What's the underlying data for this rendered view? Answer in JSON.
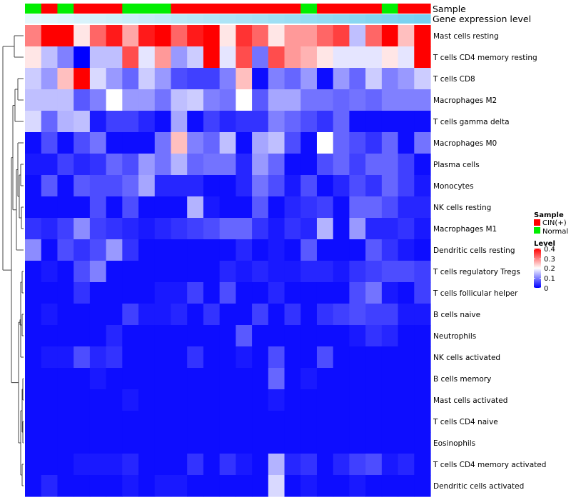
{
  "chart_data": {
    "type": "heatmap",
    "title": "",
    "annotation_tracks": [
      {
        "name": "Sample",
        "values": [
          "Normal",
          "CIN(+)",
          "Normal",
          "CIN(+)",
          "CIN(+)",
          "CIN(+)",
          "Normal",
          "Normal",
          "Normal",
          "CIN(+)",
          "CIN(+)",
          "CIN(+)",
          "CIN(+)",
          "CIN(+)",
          "CIN(+)",
          "CIN(+)",
          "CIN(+)",
          "Normal",
          "CIN(+)",
          "CIN(+)",
          "CIN(+)",
          "CIN(+)",
          "Normal",
          "CIN(+)",
          "CIN(+)"
        ]
      },
      {
        "name": "Gene expression level",
        "values": [
          0.0,
          0.04,
          0.08,
          0.12,
          0.17,
          0.21,
          0.25,
          0.29,
          0.33,
          0.38,
          0.42,
          0.46,
          0.5,
          0.54,
          0.58,
          0.63,
          0.67,
          0.71,
          0.75,
          0.79,
          0.83,
          0.88,
          0.92,
          0.96,
          1.0
        ]
      }
    ],
    "rows": [
      "Mast cells resting",
      "T cells CD4 memory resting",
      "T cells CD8",
      "Macrophages M2",
      "T cells gamma delta",
      "Macrophages M0",
      "Plasma cells",
      "Monocytes",
      "NK cells resting",
      "Macrophages M1",
      "Dendritic cells resting",
      "T cells regulatory  Tregs",
      "T cells follicular helper",
      "B cells naive",
      "Neutrophils",
      "NK cells activated",
      "B cells memory",
      "Mast cells activated",
      "T cells CD4 naive",
      "Eosinophils",
      "T cells CD4 memory activated",
      "Dendritic cells activated"
    ],
    "n_columns": 25,
    "values": [
      [
        0.3,
        0.4,
        0.4,
        0.22,
        0.32,
        0.38,
        0.27,
        0.38,
        0.4,
        0.32,
        0.38,
        0.4,
        0.22,
        0.36,
        0.32,
        0.22,
        0.28,
        0.28,
        0.32,
        0.35,
        0.15,
        0.32,
        0.4,
        0.25,
        0.4
      ],
      [
        0.22,
        0.15,
        0.1,
        0.0,
        0.15,
        0.15,
        0.34,
        0.18,
        0.28,
        0.12,
        0.16,
        0.4,
        0.18,
        0.34,
        0.09,
        0.34,
        0.28,
        0.26,
        0.22,
        0.18,
        0.18,
        0.18,
        0.22,
        0.18,
        0.4
      ],
      [
        0.16,
        0.12,
        0.25,
        0.4,
        0.17,
        0.12,
        0.08,
        0.16,
        0.12,
        0.06,
        0.05,
        0.05,
        0.1,
        0.25,
        0.01,
        0.1,
        0.08,
        0.12,
        0.01,
        0.12,
        0.08,
        0.16,
        0.1,
        0.12,
        0.16
      ],
      [
        0.15,
        0.15,
        0.15,
        0.07,
        0.1,
        0.2,
        0.12,
        0.12,
        0.09,
        0.15,
        0.16,
        0.1,
        0.09,
        0.2,
        0.07,
        0.13,
        0.13,
        0.09,
        0.09,
        0.08,
        0.09,
        0.08,
        0.1,
        0.1,
        0.1
      ],
      [
        0.17,
        0.08,
        0.14,
        0.15,
        0.02,
        0.05,
        0.05,
        0.03,
        0.01,
        0.13,
        0.01,
        0.05,
        0.03,
        0.04,
        0.04,
        0.1,
        0.08,
        0.06,
        0.04,
        0.08,
        0.01,
        0.01,
        0.01,
        0.01,
        0.01
      ],
      [
        0.01,
        0.06,
        0.01,
        0.06,
        0.09,
        0.01,
        0.01,
        0.01,
        0.09,
        0.25,
        0.1,
        0.08,
        0.15,
        0.01,
        0.13,
        0.15,
        0.06,
        0.01,
        0.2,
        0.08,
        0.06,
        0.04,
        0.08,
        0.01,
        0.09
      ],
      [
        0.02,
        0.02,
        0.05,
        0.03,
        0.04,
        0.08,
        0.06,
        0.12,
        0.09,
        0.14,
        0.08,
        0.09,
        0.09,
        0.03,
        0.12,
        0.08,
        0.01,
        0.01,
        0.06,
        0.08,
        0.05,
        0.08,
        0.08,
        0.05,
        0.01
      ],
      [
        0.01,
        0.07,
        0.01,
        0.07,
        0.06,
        0.06,
        0.08,
        0.13,
        0.03,
        0.03,
        0.03,
        0.01,
        0.01,
        0.03,
        0.09,
        0.06,
        0.02,
        0.06,
        0.01,
        0.03,
        0.06,
        0.04,
        0.08,
        0.05,
        0.02
      ],
      [
        0.01,
        0.01,
        0.01,
        0.01,
        0.06,
        0.01,
        0.06,
        0.01,
        0.01,
        0.01,
        0.14,
        0.02,
        0.01,
        0.01,
        0.07,
        0.01,
        0.03,
        0.04,
        0.05,
        0.01,
        0.08,
        0.08,
        0.06,
        0.03,
        0.03
      ],
      [
        0.04,
        0.03,
        0.05,
        0.11,
        0.05,
        0.04,
        0.03,
        0.02,
        0.03,
        0.04,
        0.05,
        0.06,
        0.08,
        0.08,
        0.04,
        0.02,
        0.04,
        0.03,
        0.14,
        0.01,
        0.12,
        0.03,
        0.03,
        0.04,
        0.02
      ],
      [
        0.11,
        0.01,
        0.06,
        0.04,
        0.06,
        0.12,
        0.04,
        0.01,
        0.01,
        0.01,
        0.01,
        0.01,
        0.01,
        0.03,
        0.01,
        0.02,
        0.01,
        0.07,
        0.01,
        0.01,
        0.01,
        0.07,
        0.04,
        0.02,
        0.01
      ],
      [
        0.01,
        0.02,
        0.01,
        0.06,
        0.1,
        0.01,
        0.01,
        0.01,
        0.01,
        0.01,
        0.01,
        0.01,
        0.03,
        0.02,
        0.03,
        0.02,
        0.02,
        0.03,
        0.03,
        0.02,
        0.04,
        0.05,
        0.06,
        0.06,
        0.05
      ],
      [
        0.01,
        0.01,
        0.01,
        0.04,
        0.01,
        0.01,
        0.01,
        0.01,
        0.02,
        0.02,
        0.05,
        0.01,
        0.06,
        0.01,
        0.01,
        0.03,
        0.01,
        0.01,
        0.01,
        0.01,
        0.06,
        0.09,
        0.02,
        0.01,
        0.05
      ],
      [
        0.01,
        0.02,
        0.01,
        0.01,
        0.01,
        0.01,
        0.05,
        0.02,
        0.02,
        0.03,
        0.01,
        0.04,
        0.01,
        0.01,
        0.05,
        0.01,
        0.04,
        0.01,
        0.04,
        0.05,
        0.06,
        0.05,
        0.05,
        0.02,
        0.02
      ],
      [
        0.01,
        0.01,
        0.01,
        0.01,
        0.01,
        0.03,
        0.01,
        0.01,
        0.01,
        0.01,
        0.01,
        0.01,
        0.01,
        0.07,
        0.01,
        0.01,
        0.01,
        0.01,
        0.01,
        0.01,
        0.02,
        0.04,
        0.03,
        0.01,
        0.01
      ],
      [
        0.01,
        0.02,
        0.02,
        0.06,
        0.03,
        0.04,
        0.01,
        0.01,
        0.01,
        0.01,
        0.04,
        0.01,
        0.01,
        0.02,
        0.01,
        0.06,
        0.01,
        0.01,
        0.06,
        0.01,
        0.01,
        0.01,
        0.01,
        0.01,
        0.01
      ],
      [
        0.01,
        0.01,
        0.01,
        0.01,
        0.02,
        0.01,
        0.01,
        0.01,
        0.01,
        0.01,
        0.01,
        0.01,
        0.01,
        0.01,
        0.01,
        0.08,
        0.01,
        0.02,
        0.01,
        0.01,
        0.01,
        0.01,
        0.01,
        0.01,
        0.01
      ],
      [
        0.01,
        0.01,
        0.01,
        0.01,
        0.01,
        0.01,
        0.02,
        0.01,
        0.01,
        0.01,
        0.01,
        0.01,
        0.01,
        0.01,
        0.01,
        0.02,
        0.01,
        0.01,
        0.01,
        0.01,
        0.01,
        0.01,
        0.01,
        0.01,
        0.01
      ],
      [
        0.01,
        0.01,
        0.01,
        0.01,
        0.01,
        0.01,
        0.01,
        0.01,
        0.01,
        0.01,
        0.01,
        0.01,
        0.01,
        0.01,
        0.01,
        0.01,
        0.01,
        0.01,
        0.01,
        0.01,
        0.01,
        0.01,
        0.01,
        0.01,
        0.01
      ],
      [
        0.01,
        0.01,
        0.01,
        0.01,
        0.01,
        0.01,
        0.01,
        0.01,
        0.01,
        0.01,
        0.01,
        0.01,
        0.01,
        0.01,
        0.01,
        0.01,
        0.01,
        0.01,
        0.01,
        0.01,
        0.01,
        0.01,
        0.01,
        0.01,
        0.01
      ],
      [
        0.01,
        0.01,
        0.01,
        0.02,
        0.02,
        0.02,
        0.03,
        0.01,
        0.01,
        0.01,
        0.04,
        0.01,
        0.04,
        0.02,
        0.01,
        0.14,
        0.03,
        0.04,
        0.01,
        0.03,
        0.05,
        0.06,
        0.02,
        0.03,
        0.01
      ],
      [
        0.01,
        0.03,
        0.01,
        0.01,
        0.01,
        0.01,
        0.02,
        0.01,
        0.02,
        0.02,
        0.01,
        0.01,
        0.01,
        0.01,
        0.01,
        0.17,
        0.01,
        0.02,
        0.01,
        0.01,
        0.02,
        0.01,
        0.01,
        0.01,
        0.01
      ]
    ],
    "color_scale": {
      "min": 0,
      "max": 0.4,
      "low": "#0000ff",
      "mid": "#ffffff",
      "high": "#ff0000"
    },
    "legend": {
      "sample": {
        "title": "Sample",
        "items": [
          {
            "label": "CIN(+)",
            "color": "#ff0000"
          },
          {
            "label": "Normal",
            "color": "#00ee00"
          }
        ]
      },
      "level": {
        "title": "Level",
        "ticks": [
          "0.4",
          "0.3",
          "0.2",
          "0.1",
          "0"
        ]
      }
    },
    "xlabel": "",
    "ylabel": ""
  }
}
